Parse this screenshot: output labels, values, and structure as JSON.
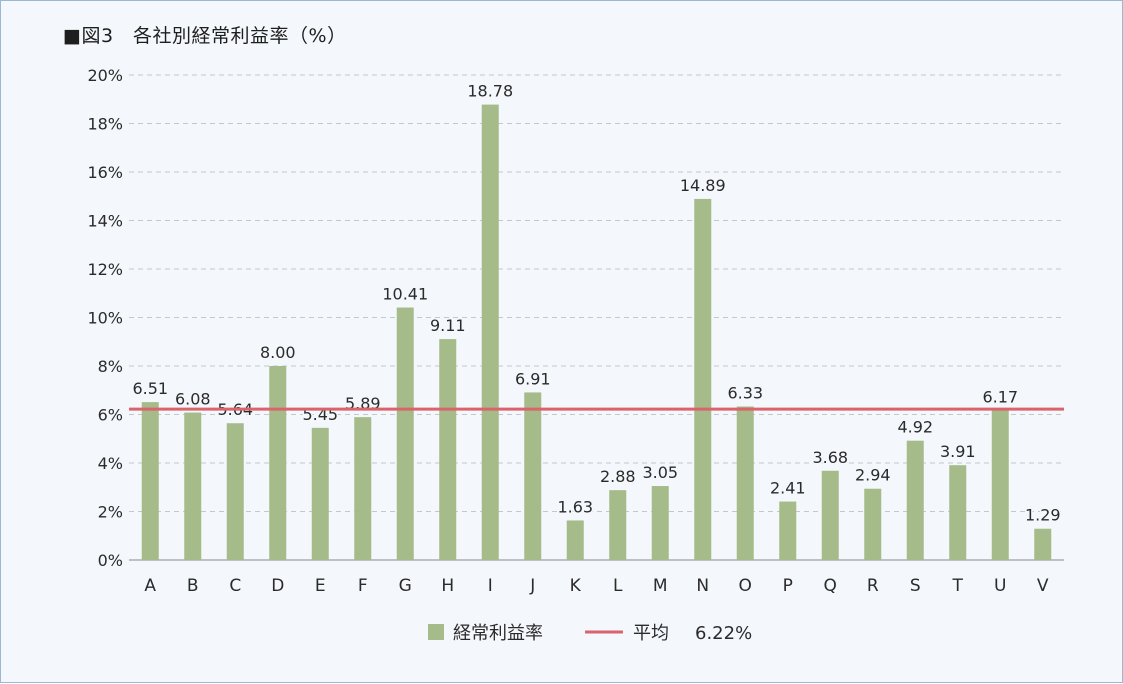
{
  "chart_data": {
    "type": "bar",
    "title": "■図3　各社別経常利益率（%）",
    "xlabel": "",
    "ylabel": "",
    "ylim": [
      0,
      20
    ],
    "y_ticks": [
      0,
      2,
      4,
      6,
      8,
      10,
      12,
      14,
      16,
      18,
      20
    ],
    "y_tick_labels": [
      "0%",
      "2%",
      "4%",
      "6%",
      "8%",
      "10%",
      "12%",
      "14%",
      "16%",
      "18%",
      "20%"
    ],
    "grid": true,
    "categories": [
      "A",
      "B",
      "C",
      "D",
      "E",
      "F",
      "G",
      "H",
      "I",
      "J",
      "K",
      "L",
      "M",
      "N",
      "O",
      "P",
      "Q",
      "R",
      "S",
      "T",
      "U",
      "V"
    ],
    "series": [
      {
        "name": "経常利益率",
        "color": "#a6bb8a",
        "values": [
          6.51,
          6.08,
          5.64,
          8.0,
          5.45,
          5.89,
          10.41,
          9.11,
          18.78,
          6.91,
          1.63,
          2.88,
          3.05,
          14.89,
          6.33,
          2.41,
          3.68,
          2.94,
          4.92,
          3.91,
          6.17,
          1.29
        ],
        "labels": [
          "6.51",
          "6.08",
          "5.64",
          "8.00",
          "5.45",
          "5.89",
          "10.41",
          "9.11",
          "18.78",
          "6.91",
          "1.63",
          "2.88",
          "3.05",
          "14.89",
          "6.33",
          "2.41",
          "3.68",
          "2.94",
          "4.92",
          "3.91",
          "6.17",
          "1.29"
        ]
      }
    ],
    "average": {
      "name": "平均",
      "value": 6.22,
      "label": "6.22%",
      "color": "#d9646c"
    },
    "legend_position": "bottom-center"
  }
}
